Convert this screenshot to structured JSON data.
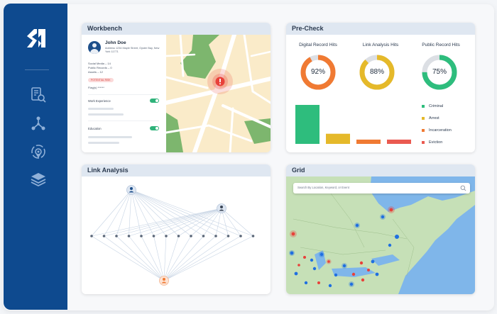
{
  "app": {
    "logo": "SN"
  },
  "sidebar": {
    "icons": [
      "document-search-icon",
      "network-icon",
      "target-icon",
      "layers-icon"
    ]
  },
  "workbench": {
    "title": "Workbench",
    "person": {
      "name": "John Doe",
      "address": "Address 1234 Maple Street, Oyster Bay, New York 11771"
    },
    "stats": [
      "Social Media – 14",
      "Public Records – 0",
      "Assets – 12"
    ],
    "badge": "POTENTIAL RISK",
    "flags": "Flag(s) ******",
    "sections": [
      {
        "label": "Work Experience",
        "enabled": true
      },
      {
        "label": "Education",
        "enabled": true
      }
    ]
  },
  "precheck": {
    "title": "Pre-Check",
    "donuts": [
      {
        "label": "Digital Record Hits",
        "value": "92%",
        "fraction": 0.92,
        "color": "#f07a33"
      },
      {
        "label": "Link Analysis Hits",
        "value": "88%",
        "fraction": 0.88,
        "color": "#e5b92a"
      },
      {
        "label": "Public Record Hits",
        "value": "75%",
        "fraction": 0.75,
        "color": "#2ebd7d"
      }
    ],
    "legend": [
      {
        "label": "Criminal",
        "color": "#2ebd7d"
      },
      {
        "label": "Arrest",
        "color": "#e5b92a"
      },
      {
        "label": "Incarceration",
        "color": "#f07a33"
      },
      {
        "label": "Eviction",
        "color": "#ea5a50"
      }
    ],
    "bars": [
      {
        "category": "Criminal",
        "value": 100,
        "color": "#2ebd7d"
      },
      {
        "category": "Arrest",
        "value": 26,
        "color": "#e5b92a"
      },
      {
        "category": "Incarceration",
        "value": 11,
        "color": "#f07a33"
      },
      {
        "category": "Eviction",
        "value": 11,
        "color": "#ea5a50"
      }
    ]
  },
  "link_analysis": {
    "title": "Link Analysis"
  },
  "grid": {
    "title": "Grid",
    "search_placeholder": "Search By Location, Keyword, or Event"
  },
  "colors": {
    "sidebar": "#0e4a8f",
    "header": "#dfe7f1",
    "map_land": "#faebc9",
    "map_park": "#7db66e",
    "alert": "#e8413a",
    "sea": "#7fb6ea",
    "land": "#c6e0b7"
  }
}
